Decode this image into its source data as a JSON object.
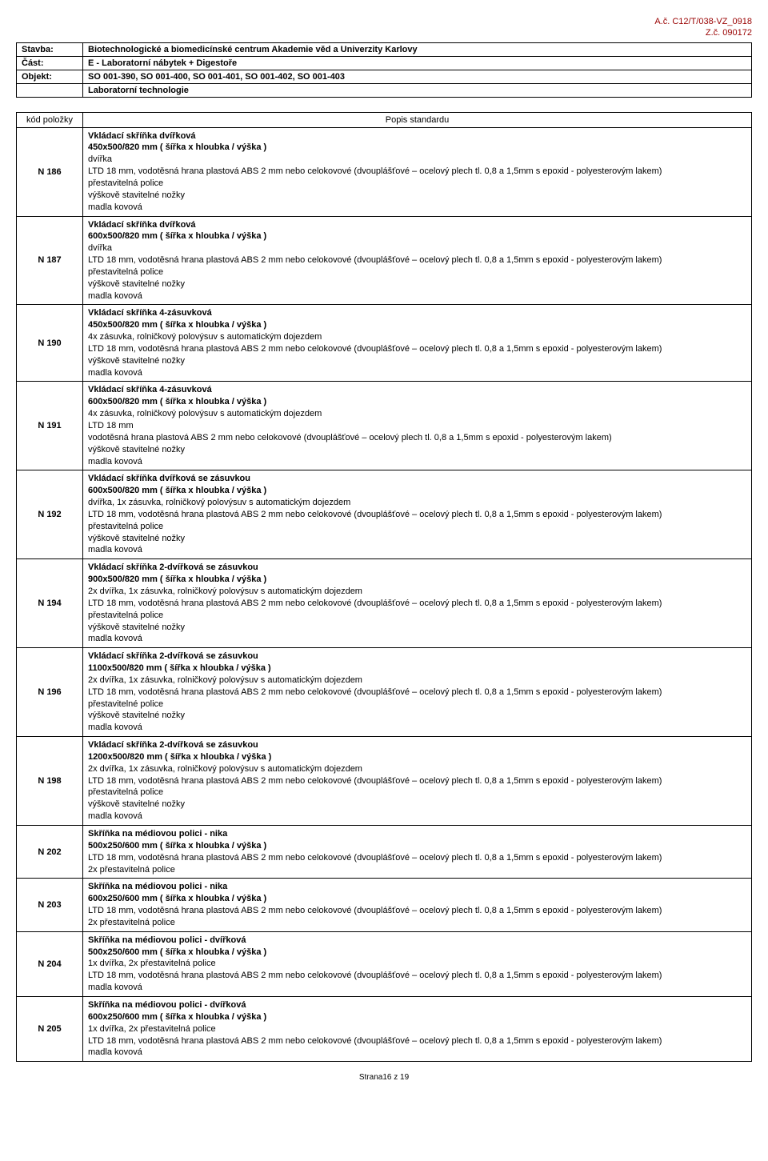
{
  "doc_ids": {
    "line1": "A.č. C12/T/038-VZ_0918",
    "line2": "Z.č. 090172"
  },
  "meta": {
    "stavba_label": "Stavba:",
    "stavba_value": "Biotechnologické a biomedicínské centrum Akademie věd a Univerzity Karlovy",
    "cast_label": "Část:",
    "cast_value": "E - Laboratorní nábytek + Digestoře",
    "objekt_label": "Objekt:",
    "objekt_value": "SO 001-390, SO 001-400, SO 001-401, SO 001-402, SO 001-403",
    "tech_value": "Laboratorní technologie"
  },
  "headers": {
    "code": "kód položky",
    "desc": "Popis standardu"
  },
  "rows": [
    {
      "code": "N 186",
      "desc": "<b>Vkládací skříňka dvířková</b><br><b>450x500/820 mm ( šířka x hloubka / výška )</b><br>dvířka<br>LTD 18 mm, vodotěsná hrana plastová ABS 2 mm nebo celokovové (dvouplášťové – ocelový plech tl. 0,8 a 1,5mm s epoxid - polyesterovým lakem)<br>přestavitelná police<br>výškově stavitelné nožky<br>madla kovová"
    },
    {
      "code": "N 187",
      "desc": "<b>Vkládací skříňka dvířková</b><br><b>600x500/820 mm ( šířka x hloubka / výška )</b><br>dvířka<br>LTD 18 mm, vodotěsná hrana plastová ABS 2 mm nebo celokovové (dvouplášťové – ocelový plech tl. 0,8 a 1,5mm s epoxid - polyesterovým lakem)<br>přestavitelná police<br>výškově stavitelné nožky<br>madla kovová"
    },
    {
      "code": "N 190",
      "desc": "<b>Vkládací skříňka 4-zásuvková</b><br><b>450x500/820 mm ( šířka x hloubka / výška )</b><br>4x zásuvka, rolničkový polovýsuv s automatickým dojezdem<br>LTD 18 mm, vodotěsná hrana plastová ABS 2 mm nebo celokovové (dvouplášťové – ocelový plech tl. 0,8 a 1,5mm s epoxid - polyesterovým lakem)<br>výškově stavitelné nožky<br>madla kovová"
    },
    {
      "code": "N 191",
      "desc": "<b>Vkládací skříňka 4-zásuvková</b><br><b>600x500/820 mm ( šířka x hloubka / výška )</b><br>4x zásuvka, rolničkový polovýsuv s automatickým dojezdem<br>LTD 18 mm<br>vodotěsná hrana plastová ABS 2 mm nebo celokovové (dvouplášťové – ocelový plech tl. 0,8 a 1,5mm s epoxid - polyesterovým lakem)<br>výškově stavitelné nožky<br>madla kovová"
    },
    {
      "code": "N 192",
      "desc": "<b>Vkládací skříňka dvířková se zásuvkou</b><br><b>600x500/820 mm ( šířka x hloubka / výška )</b><br>dvířka, 1x zásuvka, rolničkový polovýsuv s automatickým dojezdem<br>LTD 18 mm, vodotěsná hrana plastová ABS 2 mm nebo celokovové (dvouplášťové – ocelový plech tl. 0,8 a 1,5mm s epoxid - polyesterovým lakem)<br>přestavitelná police<br>výškově stavitelné nožky<br>madla kovová"
    },
    {
      "code": "N 194",
      "desc": "<b>Vkládací skříňka 2-dvířková se zásuvkou</b><br><b>900x500/820 mm ( šířka x hloubka / výška )</b><br>2x dvířka, 1x zásuvka, rolničkový polovýsuv s automatickým dojezdem<br>LTD 18 mm, vodotěsná hrana plastová ABS 2 mm nebo celokovové (dvouplášťové – ocelový plech tl. 0,8 a 1,5mm s epoxid - polyesterovým lakem)<br>přestavitelná police<br>výškově stavitelné nožky<br>madla kovová"
    },
    {
      "code": "N 196",
      "desc": "<b>Vkládací skříňka 2-dvířková se zásuvkou</b><br><b>1100x500/820 mm ( šířka x hloubka / výška )</b><br>2x dvířka, 1x zásuvka, rolničkový polovýsuv s automatickým dojezdem<br>LTD 18 mm, vodotěsná hrana plastová ABS 2 mm nebo celokovové (dvouplášťové – ocelový plech tl. 0,8 a 1,5mm s epoxid - polyesterovým lakem)<br>přestavitelné police<br>výškově stavitelné nožky<br>madla kovová"
    },
    {
      "code": "N 198",
      "desc": "<b>Vkládací skříňka 2-dvířková se zásuvkou</b><br><b>1200x500/820 mm ( šířka x hloubka / výška )</b><br>2x dvířka, 1x zásuvka, rolničkový polovýsuv s automatickým dojezdem<br>LTD 18 mm, vodotěsná hrana plastová ABS 2 mm nebo celokovové (dvouplášťové – ocelový plech tl. 0,8 a 1,5mm s epoxid - polyesterovým lakem)<br>přestavitelná police<br>výškově stavitelné nožky<br>madla kovová"
    },
    {
      "code": "N 202",
      "desc": "<b>Skříňka na médiovou polici - nika</b><br><b>500x250/600 mm ( šířka x hloubka / výška )</b><br>LTD 18 mm, vodotěsná hrana plastová ABS 2 mm nebo celokovové (dvouplášťové – ocelový plech tl. 0,8 a 1,5mm s epoxid - polyesterovým lakem)<br>2x přestavitelná police"
    },
    {
      "code": "N 203",
      "desc": "<b>Skříňka na médiovou polici - nika</b><br><b>600x250/600 mm ( šířka x hloubka / výška )</b><br>LTD 18 mm, vodotěsná hrana plastová ABS 2 mm nebo celokovové (dvouplášťové – ocelový plech tl. 0,8 a 1,5mm s epoxid - polyesterovým lakem)<br>2x přestavitelná police"
    },
    {
      "code": "N 204",
      "desc": "<b>Skříňka na médiovou polici - dvířková</b><br><b>500x250/600 mm ( šířka x hloubka / výška )</b><br>1x dvířka, 2x přestavitelná police<br>LTD 18 mm, vodotěsná hrana plastová ABS 2 mm nebo celokovové (dvouplášťové – ocelový plech tl. 0,8 a 1,5mm s epoxid - polyesterovým lakem)<br>madla kovová"
    },
    {
      "code": "N 205",
      "desc": "<b>Skříňka na médiovou polici - dvířková</b><br><b>600x250/600 mm ( šířka x hloubka / výška )</b><br>1x dvířka, 2x přestavitelná police<br>LTD 18 mm, vodotěsná hrana plastová ABS 2 mm nebo celokovové (dvouplášťové – ocelový plech tl. 0,8 a 1,5mm s epoxid - polyesterovým lakem)<br>madla kovová"
    }
  ],
  "footer": "Strana16 z 19"
}
